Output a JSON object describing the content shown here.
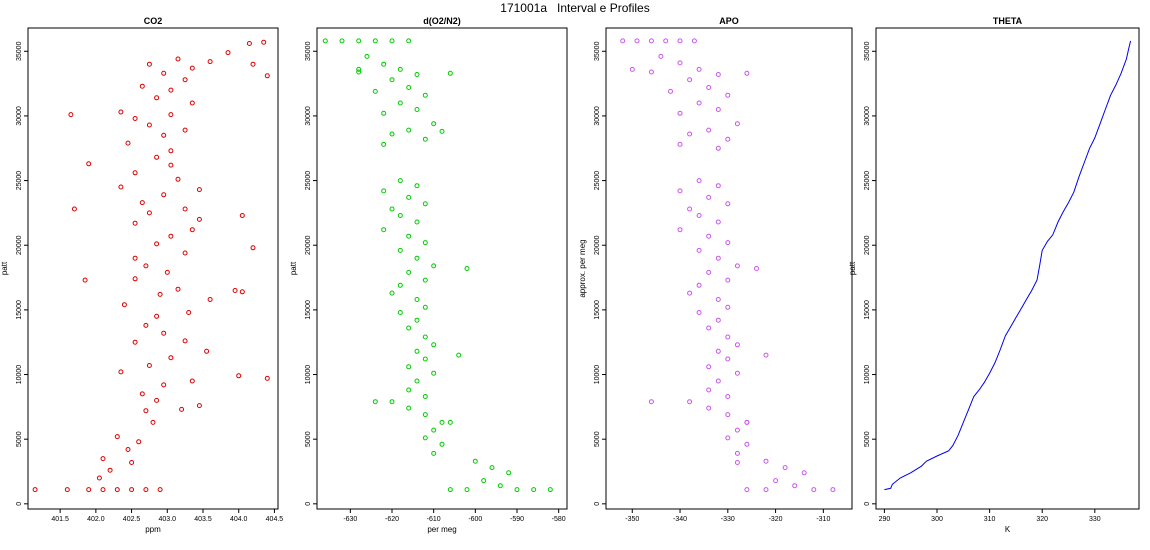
{
  "title": "171001a   Interval e Profiles",
  "chart_data": [
    {
      "type": "scatter",
      "title": "CO2",
      "xlabel": "ppm",
      "ylabel": "patt",
      "xlim": [
        401.05,
        404.55
      ],
      "ylim": [
        -400,
        36800
      ],
      "xticks": [
        "401.5",
        "402.0",
        "402.5",
        "403.0",
        "403.5",
        "404.0",
        "404.5"
      ],
      "yticks": [
        "0",
        "5000",
        "10000",
        "15000",
        "20000",
        "25000",
        "30000",
        "35000"
      ],
      "color": "#e00000",
      "grid": false,
      "points": [
        [
          401.15,
          1100
        ],
        [
          401.6,
          1100
        ],
        [
          401.9,
          1100
        ],
        [
          402.1,
          1100
        ],
        [
          402.3,
          1100
        ],
        [
          402.5,
          1100
        ],
        [
          402.7,
          1100
        ],
        [
          402.9,
          1100
        ],
        [
          402.05,
          2000
        ],
        [
          402.2,
          2600
        ],
        [
          402.5,
          3200
        ],
        [
          402.1,
          3500
        ],
        [
          402.45,
          4200
        ],
        [
          402.6,
          4800
        ],
        [
          402.3,
          5200
        ],
        [
          402.8,
          6300
        ],
        [
          402.7,
          7200
        ],
        [
          402.85,
          8000
        ],
        [
          403.2,
          7300
        ],
        [
          403.45,
          7600
        ],
        [
          402.65,
          8500
        ],
        [
          402.95,
          9200
        ],
        [
          403.35,
          9500
        ],
        [
          402.35,
          10200
        ],
        [
          402.75,
          10700
        ],
        [
          403.05,
          11300
        ],
        [
          403.55,
          11800
        ],
        [
          402.55,
          12500
        ],
        [
          402.95,
          13200
        ],
        [
          403.25,
          12600
        ],
        [
          402.7,
          13800
        ],
        [
          402.85,
          14500
        ],
        [
          403.3,
          14800
        ],
        [
          402.4,
          15400
        ],
        [
          403.6,
          15800
        ],
        [
          402.9,
          16200
        ],
        [
          403.15,
          16600
        ],
        [
          403.95,
          16500
        ],
        [
          402.55,
          17400
        ],
        [
          403.0,
          17900
        ],
        [
          402.7,
          18400
        ],
        [
          402.55,
          19000
        ],
        [
          403.25,
          19400
        ],
        [
          402.85,
          20100
        ],
        [
          403.05,
          20700
        ],
        [
          403.35,
          21200
        ],
        [
          402.55,
          21700
        ],
        [
          403.45,
          22000
        ],
        [
          402.75,
          22500
        ],
        [
          403.25,
          22800
        ],
        [
          402.65,
          23300
        ],
        [
          402.95,
          23900
        ],
        [
          403.45,
          24300
        ],
        [
          402.35,
          24500
        ],
        [
          403.15,
          25100
        ],
        [
          402.55,
          25600
        ],
        [
          403.05,
          26200
        ],
        [
          402.85,
          26800
        ],
        [
          403.05,
          27300
        ],
        [
          402.45,
          27900
        ],
        [
          402.95,
          28500
        ],
        [
          403.25,
          28900
        ],
        [
          402.75,
          29300
        ],
        [
          402.55,
          29800
        ],
        [
          403.05,
          30100
        ],
        [
          402.35,
          30300
        ],
        [
          403.35,
          31000
        ],
        [
          402.85,
          31400
        ],
        [
          403.05,
          32000
        ],
        [
          402.65,
          32300
        ],
        [
          403.25,
          32800
        ],
        [
          402.95,
          33300
        ],
        [
          403.35,
          33700
        ],
        [
          402.75,
          34000
        ],
        [
          403.15,
          34400
        ],
        [
          403.6,
          34200
        ],
        [
          403.85,
          34900
        ],
        [
          404.15,
          35600
        ],
        [
          404.35,
          35700
        ],
        [
          401.9,
          26300
        ],
        [
          401.7,
          22800
        ],
        [
          401.85,
          17300
        ],
        [
          404.05,
          22300
        ],
        [
          404.2,
          19800
        ],
        [
          404.05,
          16400
        ],
        [
          404.0,
          9900
        ],
        [
          404.4,
          9700
        ],
        [
          404.4,
          33100
        ],
        [
          404.2,
          34000
        ],
        [
          401.65,
          30100
        ]
      ]
    },
    {
      "type": "scatter",
      "title": "d(O2/N2)",
      "xlabel": "per meg",
      "ylabel": "patt",
      "xlim": [
        -638,
        -578
      ],
      "ylim": [
        -400,
        36800
      ],
      "xticks": [
        "-630",
        "-620",
        "-610",
        "-600",
        "-590",
        "-580"
      ],
      "yticks": [
        "0",
        "5000",
        "10000",
        "15000",
        "20000",
        "25000",
        "30000",
        "35000"
      ],
      "color": "#00cc00",
      "grid": false,
      "points": [
        [
          -636,
          35800
        ],
        [
          -632,
          35800
        ],
        [
          -628,
          35800
        ],
        [
          -624,
          35800
        ],
        [
          -620,
          35800
        ],
        [
          -616,
          35800
        ],
        [
          -626,
          34600
        ],
        [
          -622,
          34000
        ],
        [
          -618,
          33600
        ],
        [
          -614,
          33200
        ],
        [
          -628,
          33400
        ],
        [
          -620,
          32800
        ],
        [
          -616,
          32200
        ],
        [
          -624,
          31900
        ],
        [
          -612,
          31600
        ],
        [
          -618,
          31000
        ],
        [
          -614,
          30500
        ],
        [
          -622,
          30200
        ],
        [
          -610,
          29400
        ],
        [
          -616,
          28900
        ],
        [
          -620,
          28600
        ],
        [
          -612,
          28200
        ],
        [
          -622,
          27800
        ],
        [
          -608,
          28800
        ],
        [
          -618,
          25000
        ],
        [
          -614,
          24600
        ],
        [
          -622,
          24200
        ],
        [
          -616,
          23700
        ],
        [
          -612,
          23200
        ],
        [
          -620,
          22800
        ],
        [
          -618,
          22300
        ],
        [
          -614,
          21800
        ],
        [
          -622,
          21200
        ],
        [
          -616,
          20700
        ],
        [
          -612,
          20200
        ],
        [
          -618,
          19600
        ],
        [
          -614,
          19000
        ],
        [
          -610,
          18400
        ],
        [
          -616,
          17900
        ],
        [
          -612,
          17300
        ],
        [
          -618,
          16900
        ],
        [
          -620,
          16300
        ],
        [
          -614,
          15800
        ],
        [
          -612,
          15200
        ],
        [
          -618,
          14800
        ],
        [
          -614,
          14200
        ],
        [
          -616,
          13600
        ],
        [
          -612,
          12900
        ],
        [
          -610,
          12300
        ],
        [
          -614,
          11800
        ],
        [
          -612,
          11200
        ],
        [
          -616,
          10600
        ],
        [
          -610,
          10100
        ],
        [
          -614,
          9500
        ],
        [
          -616,
          8800
        ],
        [
          -612,
          8300
        ],
        [
          -620,
          7900
        ],
        [
          -616,
          7400
        ],
        [
          -612,
          6900
        ],
        [
          -608,
          6300
        ],
        [
          -610,
          5700
        ],
        [
          -612,
          5100
        ],
        [
          -608,
          4600
        ],
        [
          -610,
          3900
        ],
        [
          -600,
          3300
        ],
        [
          -596,
          2800
        ],
        [
          -592,
          2400
        ],
        [
          -598,
          1800
        ],
        [
          -594,
          1400
        ],
        [
          -590,
          1100
        ],
        [
          -586,
          1100
        ],
        [
          -582,
          1100
        ],
        [
          -602,
          1100
        ],
        [
          -606,
          1100
        ],
        [
          -624,
          7900
        ],
        [
          -628,
          33600
        ],
        [
          -606,
          33300
        ],
        [
          -602,
          18200
        ],
        [
          -604,
          11500
        ],
        [
          -606,
          6300
        ]
      ]
    },
    {
      "type": "scatter",
      "title": "APO",
      "xlabel": "",
      "ylabel": "approx. per meg",
      "xlim": [
        -355.5,
        -304
      ],
      "ylim": [
        -400,
        36800
      ],
      "xticks": [
        "-350",
        "-340",
        "-330",
        "-320",
        "-310"
      ],
      "yticks": [
        "0",
        "5000",
        "10000",
        "15000",
        "20000",
        "25000",
        "30000",
        "35000"
      ],
      "color": "#cc55ee",
      "grid": false,
      "points": [
        [
          -352,
          35800
        ],
        [
          -349,
          35800
        ],
        [
          -346,
          35800
        ],
        [
          -343,
          35800
        ],
        [
          -340,
          35800
        ],
        [
          -337,
          35800
        ],
        [
          -344,
          34600
        ],
        [
          -340,
          34100
        ],
        [
          -336,
          33600
        ],
        [
          -332,
          33200
        ],
        [
          -346,
          33400
        ],
        [
          -338,
          32800
        ],
        [
          -334,
          32200
        ],
        [
          -342,
          31900
        ],
        [
          -330,
          31600
        ],
        [
          -336,
          31000
        ],
        [
          -332,
          30500
        ],
        [
          -340,
          30200
        ],
        [
          -328,
          29400
        ],
        [
          -334,
          28900
        ],
        [
          -338,
          28600
        ],
        [
          -330,
          28200
        ],
        [
          -340,
          27800
        ],
        [
          -336,
          25000
        ],
        [
          -332,
          24600
        ],
        [
          -340,
          24200
        ],
        [
          -334,
          23700
        ],
        [
          -330,
          23200
        ],
        [
          -338,
          22800
        ],
        [
          -336,
          22300
        ],
        [
          -332,
          21800
        ],
        [
          -340,
          21200
        ],
        [
          -334,
          20700
        ],
        [
          -330,
          20200
        ],
        [
          -336,
          19600
        ],
        [
          -332,
          19000
        ],
        [
          -328,
          18400
        ],
        [
          -334,
          17900
        ],
        [
          -330,
          17300
        ],
        [
          -336,
          16900
        ],
        [
          -338,
          16300
        ],
        [
          -332,
          15800
        ],
        [
          -330,
          15200
        ],
        [
          -336,
          14800
        ],
        [
          -332,
          14200
        ],
        [
          -334,
          13600
        ],
        [
          -330,
          12900
        ],
        [
          -328,
          12300
        ],
        [
          -332,
          11800
        ],
        [
          -330,
          11200
        ],
        [
          -334,
          10600
        ],
        [
          -328,
          10100
        ],
        [
          -332,
          9500
        ],
        [
          -334,
          8800
        ],
        [
          -330,
          8300
        ],
        [
          -338,
          7900
        ],
        [
          -334,
          7400
        ],
        [
          -330,
          6900
        ],
        [
          -326,
          6300
        ],
        [
          -328,
          5700
        ],
        [
          -330,
          5100
        ],
        [
          -326,
          4600
        ],
        [
          -328,
          3900
        ],
        [
          -322,
          3300
        ],
        [
          -318,
          2800
        ],
        [
          -314,
          2400
        ],
        [
          -320,
          1800
        ],
        [
          -316,
          1400
        ],
        [
          -312,
          1100
        ],
        [
          -308,
          1100
        ],
        [
          -322,
          1100
        ],
        [
          -326,
          1100
        ],
        [
          -346,
          7900
        ],
        [
          -350,
          33600
        ],
        [
          -326,
          33300
        ],
        [
          -324,
          18200
        ],
        [
          -322,
          11500
        ],
        [
          -326,
          6300
        ],
        [
          -328,
          3200
        ],
        [
          -332,
          27500
        ]
      ]
    },
    {
      "type": "line",
      "title": "THETA",
      "xlabel": "K",
      "ylabel": "patt",
      "xlim": [
        288.4,
        338.4
      ],
      "ylim": [
        -400,
        36800
      ],
      "xticks": [
        "290",
        "300",
        "310",
        "320",
        "330"
      ],
      "yticks": [
        "0",
        "5000",
        "10000",
        "15000",
        "20000",
        "25000",
        "30000",
        "35000"
      ],
      "color": "#0000ee",
      "grid": false,
      "points": [
        [
          290,
          1100
        ],
        [
          291.2,
          1200
        ],
        [
          291.5,
          1500
        ],
        [
          293,
          2000
        ],
        [
          295,
          2400
        ],
        [
          297,
          2900
        ],
        [
          298,
          3300
        ],
        [
          300,
          3700
        ],
        [
          302.2,
          4100
        ],
        [
          303,
          4500
        ],
        [
          304,
          5300
        ],
        [
          305,
          6300
        ],
        [
          306,
          7300
        ],
        [
          307,
          8300
        ],
        [
          308,
          8800
        ],
        [
          309,
          9400
        ],
        [
          310,
          10100
        ],
        [
          311,
          10900
        ],
        [
          312,
          11900
        ],
        [
          313,
          13000
        ],
        [
          314,
          13700
        ],
        [
          315,
          14400
        ],
        [
          316,
          15100
        ],
        [
          317,
          15800
        ],
        [
          318,
          16500
        ],
        [
          319,
          17300
        ],
        [
          319.5,
          18400
        ],
        [
          320,
          19600
        ],
        [
          321,
          20300
        ],
        [
          322,
          20800
        ],
        [
          322.5,
          21300
        ],
        [
          323,
          21800
        ],
        [
          324,
          22600
        ],
        [
          325,
          23300
        ],
        [
          326,
          24100
        ],
        [
          327,
          25300
        ],
        [
          328,
          26400
        ],
        [
          329,
          27500
        ],
        [
          330,
          28300
        ],
        [
          331,
          29400
        ],
        [
          332,
          30500
        ],
        [
          333,
          31600
        ],
        [
          334,
          32400
        ],
        [
          335,
          33300
        ],
        [
          336,
          34400
        ],
        [
          336.5,
          35300
        ],
        [
          336.8,
          35800
        ]
      ]
    }
  ]
}
